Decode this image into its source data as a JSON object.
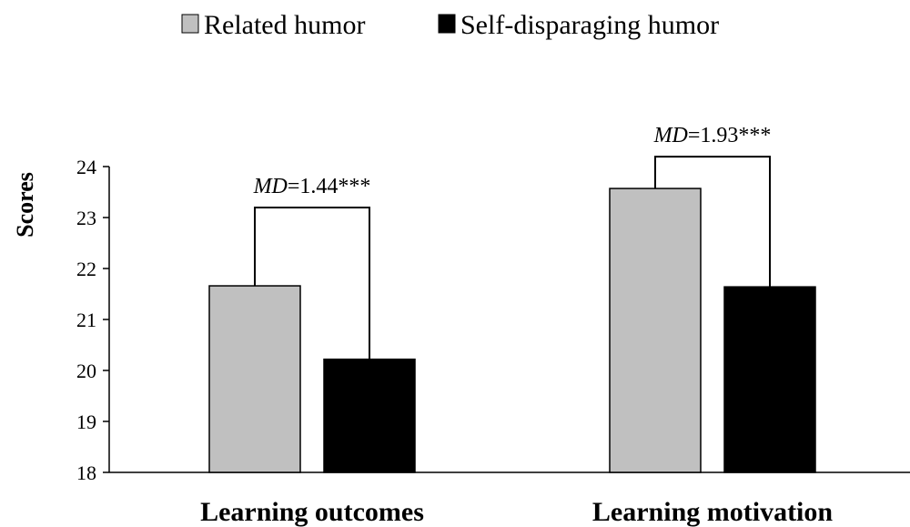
{
  "chart_data": {
    "type": "bar",
    "categories": [
      "Learning outcomes",
      "Learning motivation"
    ],
    "series": [
      {
        "name": "Related humor",
        "color": "#c0c0c0",
        "values": [
          21.66,
          23.57
        ]
      },
      {
        "name": "Self-disparaging humor",
        "color": "#000000",
        "values": [
          20.22,
          21.64
        ]
      }
    ],
    "y_label": "Scores",
    "ylim": [
      18,
      24
    ],
    "yticks": [
      18,
      19,
      20,
      21,
      22,
      23,
      24
    ],
    "annotations": [
      {
        "parts": [
          "MD",
          "=1.44***"
        ]
      },
      {
        "parts": [
          "MD",
          "=1.93***"
        ]
      }
    ],
    "legend": "top"
  }
}
